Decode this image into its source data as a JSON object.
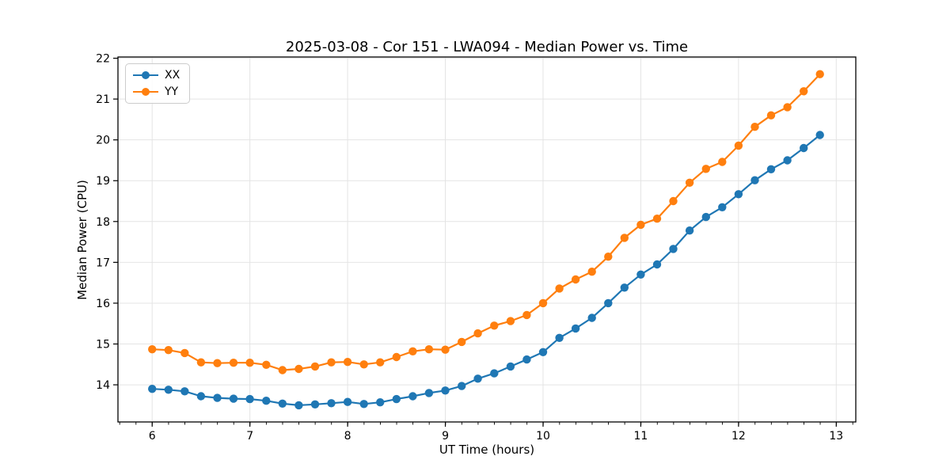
{
  "chart_data": {
    "type": "line",
    "title": "2025-03-08 - Cor 151 - LWA094 - Median Power vs. Time",
    "xlabel": "UT Time (hours)",
    "ylabel": "Median Power (CPU)",
    "x": [
      6.0,
      6.167,
      6.333,
      6.5,
      6.667,
      6.833,
      7.0,
      7.167,
      7.333,
      7.5,
      7.667,
      7.833,
      8.0,
      8.167,
      8.333,
      8.5,
      8.667,
      8.833,
      9.0,
      9.167,
      9.333,
      9.5,
      9.667,
      9.833,
      10.0,
      10.167,
      10.333,
      10.5,
      10.667,
      10.833,
      11.0,
      11.167,
      11.333,
      11.5,
      11.667,
      11.833,
      12.0,
      12.167,
      12.333,
      12.5,
      12.667,
      12.833
    ],
    "series": [
      {
        "name": "XX",
        "color": "#1f77b4",
        "values": [
          13.9,
          13.88,
          13.84,
          13.72,
          13.68,
          13.66,
          13.65,
          13.61,
          13.54,
          13.5,
          13.52,
          13.55,
          13.58,
          13.53,
          13.57,
          13.65,
          13.72,
          13.8,
          13.86,
          13.97,
          14.15,
          14.28,
          14.45,
          14.62,
          14.8,
          15.15,
          15.38,
          15.64,
          16.0,
          16.38,
          16.7,
          16.95,
          17.33,
          17.78,
          18.11,
          18.35,
          18.67,
          19.01,
          19.28,
          19.5,
          19.8,
          20.12
        ]
      },
      {
        "name": "YY",
        "color": "#ff7f0e",
        "values": [
          14.87,
          14.85,
          14.78,
          14.55,
          14.53,
          14.54,
          14.54,
          14.49,
          14.36,
          14.39,
          14.45,
          14.55,
          14.56,
          14.5,
          14.55,
          14.68,
          14.82,
          14.87,
          14.86,
          15.05,
          15.26,
          15.45,
          15.56,
          15.71,
          16.0,
          16.36,
          16.58,
          16.77,
          17.14,
          17.6,
          17.92,
          18.07,
          18.5,
          18.95,
          19.29,
          19.46,
          19.86,
          20.32,
          20.6,
          20.8,
          21.19,
          21.61
        ]
      }
    ],
    "xlim": [
      5.65,
      13.2
    ],
    "ylim": [
      13.09,
      22.03
    ],
    "xticks": [
      6,
      7,
      8,
      9,
      10,
      11,
      12,
      13
    ],
    "yticks": [
      14,
      15,
      16,
      17,
      18,
      19,
      20,
      21,
      22
    ],
    "x_minor_step": 0.1667,
    "grid": true,
    "grid_color": "#e4e4e4",
    "spine_color": "#000000",
    "legend_position": "upper left",
    "legend_entries": [
      "XX",
      "YY"
    ],
    "marker": "circle",
    "marker_radius": 5.2,
    "line_width": 2.2
  }
}
